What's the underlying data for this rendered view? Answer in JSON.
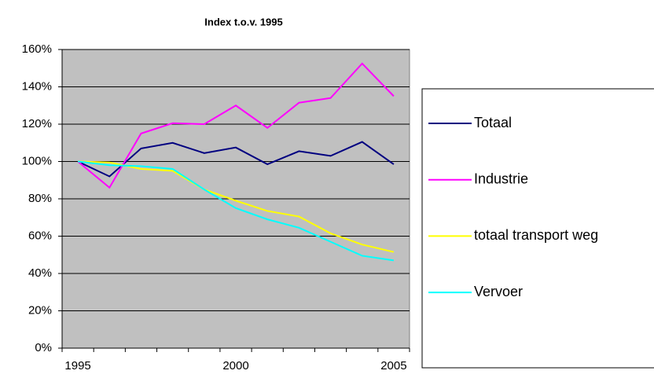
{
  "chart_data": {
    "type": "line",
    "title": "Index t.o.v. 1995",
    "categories": [
      "1995",
      null,
      null,
      null,
      null,
      "2000",
      null,
      null,
      null,
      null,
      "2005"
    ],
    "series": [
      {
        "name": "Totaal",
        "color": "#000080",
        "values": [
          100,
          92,
          107,
          110,
          104.5,
          107.5,
          98.5,
          105.5,
          103,
          110.5,
          98.5
        ]
      },
      {
        "name": "Industrie",
        "color": "#ff00ff",
        "values": [
          100,
          86,
          115,
          120.5,
          120,
          130,
          118,
          131.5,
          134,
          152.5,
          135
        ]
      },
      {
        "name": "totaal transport weg",
        "color": "#ffff00",
        "values": [
          100,
          99.5,
          96,
          95,
          85,
          79,
          73.5,
          70.5,
          61.5,
          55.5,
          51.5
        ]
      },
      {
        "name": "Vervoer",
        "color": "#00ffff",
        "values": [
          100,
          98,
          97.5,
          96,
          85,
          75,
          69,
          64.5,
          57,
          49.5,
          47
        ]
      }
    ],
    "ylim": [
      0,
      160
    ],
    "yticks": [
      {
        "value": 0,
        "label": "0%"
      },
      {
        "value": 20,
        "label": "20%"
      },
      {
        "value": 40,
        "label": "40%"
      },
      {
        "value": 60,
        "label": "60%"
      },
      {
        "value": 80,
        "label": "80%"
      },
      {
        "value": 100,
        "label": "100%"
      },
      {
        "value": 120,
        "label": "120%"
      },
      {
        "value": 140,
        "label": "140%"
      },
      {
        "value": 160,
        "label": "160%"
      }
    ],
    "grid": true,
    "legend": "right"
  }
}
